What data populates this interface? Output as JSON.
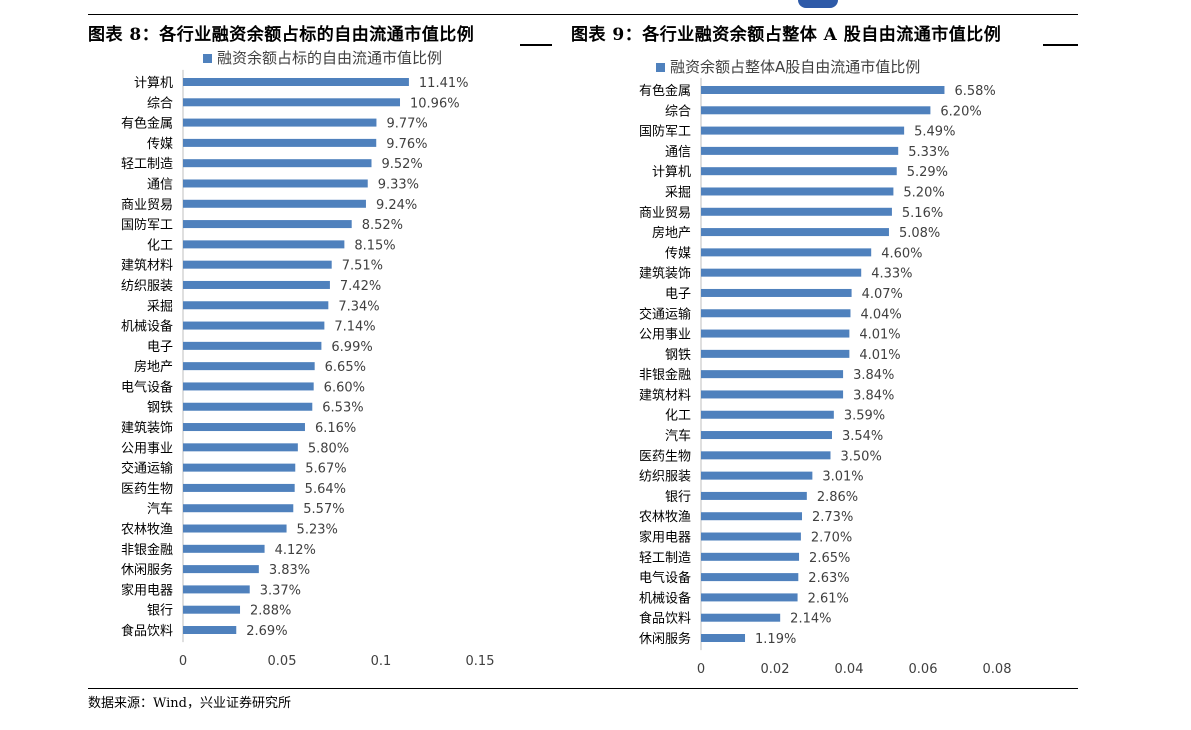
{
  "header": {
    "title_left": "图表 8：各行业融资余额占标的自由流通市值比例",
    "title_right": "图表 9：各行业融资余额占整体 A 股自由流通市值比例"
  },
  "footer": {
    "source": "数据来源：Wind，兴业证券研究所"
  },
  "colors": {
    "bar": "#4f81bd",
    "text": "#000000",
    "rule": "#000000"
  },
  "chart_data": [
    {
      "type": "bar",
      "orientation": "horizontal",
      "legend": "融资余额占标的自由流通市值比例",
      "legend_position": "top",
      "categories": [
        "计算机",
        "综合",
        "有色金属",
        "传媒",
        "轻工制造",
        "通信",
        "商业贸易",
        "国防军工",
        "化工",
        "建筑材料",
        "纺织服装",
        "采掘",
        "机械设备",
        "电子",
        "房地产",
        "电气设备",
        "钢铁",
        "建筑装饰",
        "公用事业",
        "交通运输",
        "医药生物",
        "汽车",
        "农林牧渔",
        "非银金融",
        "休闲服务",
        "家用电器",
        "银行",
        "食品饮料"
      ],
      "values": [
        0.1141,
        0.1096,
        0.0977,
        0.0976,
        0.0952,
        0.0933,
        0.0924,
        0.0852,
        0.0815,
        0.0751,
        0.0742,
        0.0734,
        0.0714,
        0.0699,
        0.0665,
        0.066,
        0.0653,
        0.0616,
        0.058,
        0.0567,
        0.0564,
        0.0557,
        0.0523,
        0.0412,
        0.0383,
        0.0337,
        0.0288,
        0.0269
      ],
      "data_labels": [
        "11.41%",
        "10.96%",
        "9.77%",
        "9.76%",
        "9.52%",
        "9.33%",
        "9.24%",
        "8.52%",
        "8.15%",
        "7.51%",
        "7.42%",
        "7.34%",
        "7.14%",
        "6.99%",
        "6.65%",
        "6.60%",
        "6.53%",
        "6.16%",
        "5.80%",
        "5.67%",
        "5.64%",
        "5.57%",
        "5.23%",
        "4.12%",
        "3.83%",
        "3.37%",
        "2.88%",
        "2.69%"
      ],
      "xlim": [
        0,
        0.15
      ],
      "x_ticks": [
        "0",
        "0.05",
        "0.1",
        "0.15"
      ],
      "grid": false
    },
    {
      "type": "bar",
      "orientation": "horizontal",
      "legend": "融资余额占整体A股自由流通市值比例",
      "legend_position": "top",
      "categories": [
        "有色金属",
        "综合",
        "国防军工",
        "通信",
        "计算机",
        "采掘",
        "商业贸易",
        "房地产",
        "传媒",
        "建筑装饰",
        "电子",
        "交通运输",
        "公用事业",
        "钢铁",
        "非银金融",
        "建筑材料",
        "化工",
        "汽车",
        "医药生物",
        "纺织服装",
        "银行",
        "农林牧渔",
        "家用电器",
        "轻工制造",
        "电气设备",
        "机械设备",
        "食品饮料",
        "休闲服务"
      ],
      "values": [
        0.0658,
        0.062,
        0.0549,
        0.0533,
        0.0529,
        0.052,
        0.0516,
        0.0508,
        0.046,
        0.0433,
        0.0407,
        0.0404,
        0.0401,
        0.0401,
        0.0384,
        0.0384,
        0.0359,
        0.0354,
        0.035,
        0.0301,
        0.0286,
        0.0273,
        0.027,
        0.0265,
        0.0263,
        0.0261,
        0.0214,
        0.0119
      ],
      "data_labels": [
        "6.58%",
        "6.20%",
        "5.49%",
        "5.33%",
        "5.29%",
        "5.20%",
        "5.16%",
        "5.08%",
        "4.60%",
        "4.33%",
        "4.07%",
        "4.04%",
        "4.01%",
        "4.01%",
        "3.84%",
        "3.84%",
        "3.59%",
        "3.54%",
        "3.50%",
        "3.01%",
        "2.86%",
        "2.73%",
        "2.70%",
        "2.65%",
        "2.63%",
        "2.61%",
        "2.14%",
        "1.19%"
      ],
      "xlim": [
        0,
        0.08
      ],
      "x_ticks": [
        "0",
        "0.02",
        "0.04",
        "0.06",
        "0.08"
      ],
      "grid": false
    }
  ]
}
